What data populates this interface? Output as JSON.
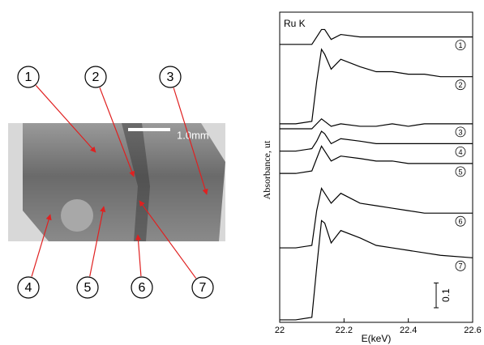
{
  "chart_data": {
    "type": "line",
    "title": "Ru K",
    "xlabel": "E(keV)",
    "ylabel": "Absorbance, ut",
    "x": [
      22.0,
      22.05,
      22.1,
      22.115,
      22.13,
      22.14,
      22.16,
      22.19,
      22.25,
      22.3,
      22.35,
      22.4,
      22.45,
      22.5,
      22.6
    ],
    "xlim": [
      22,
      22.6
    ],
    "xticks": [
      22,
      22.2,
      22.4,
      22.6
    ],
    "ylim": [
      0,
      1.25
    ],
    "scale_bar": 0.1,
    "series": [
      {
        "name": "1",
        "color": "#000000",
        "values": [
          1.12,
          1.12,
          1.12,
          1.15,
          1.18,
          1.18,
          1.14,
          1.16,
          1.15,
          1.15,
          1.15,
          1.15,
          1.15,
          1.15,
          1.15
        ]
      },
      {
        "name": "2",
        "color": "#000000",
        "values": [
          0.8,
          0.8,
          0.81,
          0.97,
          1.1,
          1.08,
          1.02,
          1.06,
          1.03,
          1.01,
          1.01,
          1.0,
          1.0,
          0.99,
          0.99
        ]
      },
      {
        "name": "3",
        "color": "#000000",
        "values": [
          0.78,
          0.78,
          0.78,
          0.8,
          0.82,
          0.81,
          0.79,
          0.8,
          0.79,
          0.79,
          0.8,
          0.79,
          0.8,
          0.8,
          0.8
        ]
      },
      {
        "name": "4",
        "color": "#000000",
        "values": [
          0.69,
          0.69,
          0.7,
          0.73,
          0.77,
          0.76,
          0.72,
          0.74,
          0.73,
          0.72,
          0.72,
          0.72,
          0.72,
          0.72,
          0.72
        ]
      },
      {
        "name": "5",
        "color": "#000000",
        "values": [
          0.6,
          0.6,
          0.61,
          0.66,
          0.71,
          0.69,
          0.65,
          0.67,
          0.66,
          0.65,
          0.65,
          0.64,
          0.64,
          0.64,
          0.64
        ]
      },
      {
        "name": "6",
        "color": "#000000",
        "values": [
          0.3,
          0.3,
          0.31,
          0.45,
          0.54,
          0.52,
          0.48,
          0.52,
          0.48,
          0.47,
          0.46,
          0.45,
          0.44,
          0.44,
          0.44
        ]
      },
      {
        "name": "7",
        "color": "#000000",
        "values": [
          0.01,
          0.01,
          0.02,
          0.22,
          0.41,
          0.4,
          0.32,
          0.37,
          0.34,
          0.31,
          0.3,
          0.29,
          0.28,
          0.27,
          0.26
        ]
      }
    ]
  },
  "image": {
    "scale_label": "1.0mm",
    "markers": [
      "1",
      "2",
      "3",
      "4",
      "5",
      "6",
      "7"
    ]
  }
}
